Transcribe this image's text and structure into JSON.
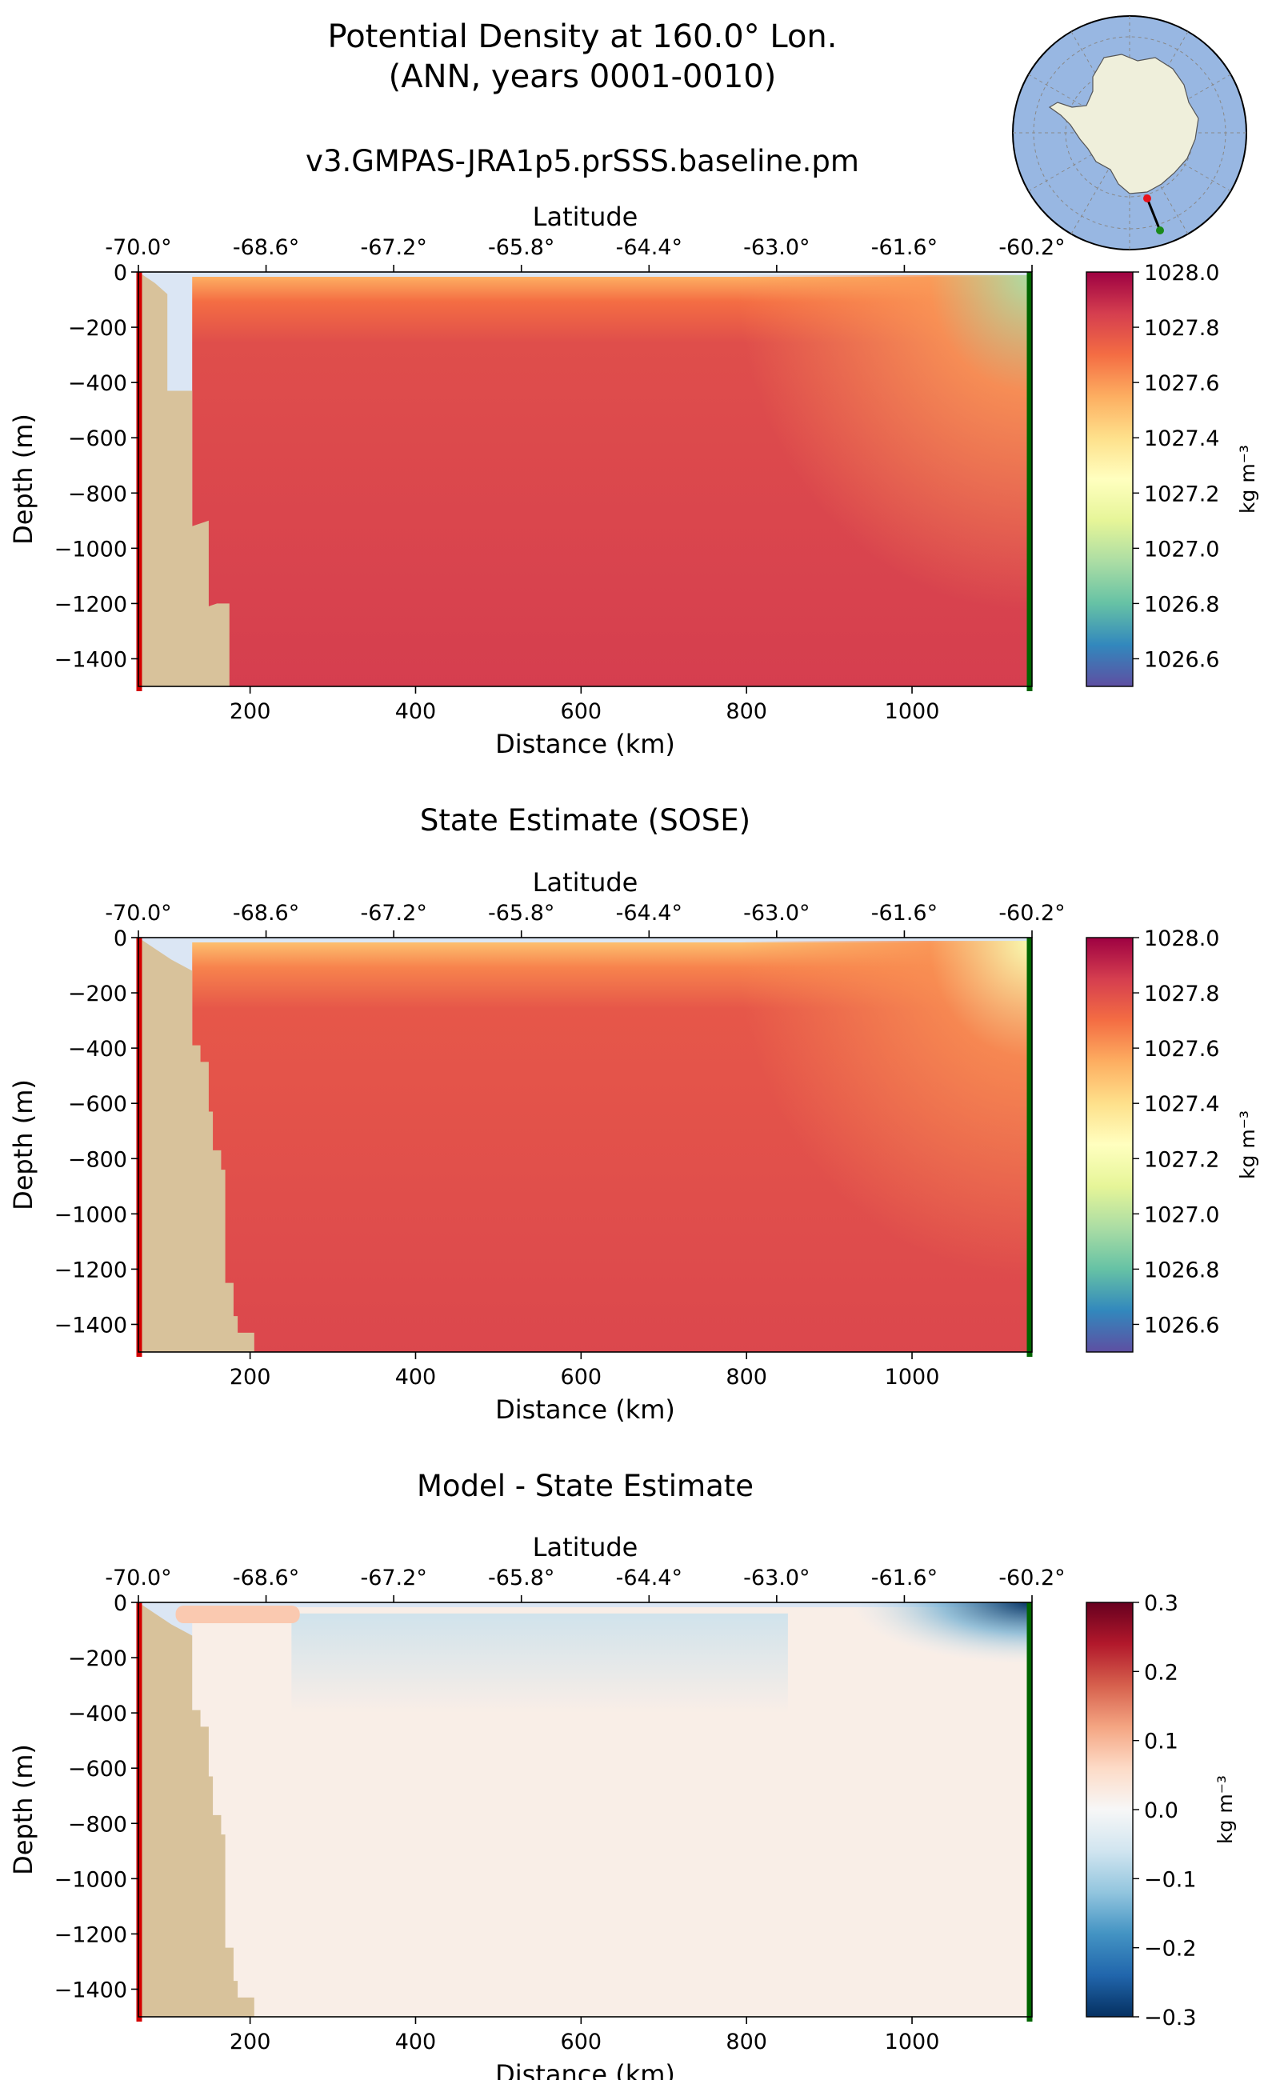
{
  "figure": {
    "title_line1": "Potential Density at 160.0° Lon.",
    "title_line2": "(ANN, years 0001-0010)",
    "run_name": "v3.GMPAS-JRA1p5.prSSS.baseline.pm"
  },
  "inset_map": {
    "description_icon": "antarctica-map-icon",
    "ocean_color": "#98b7e2",
    "land_color": "#efefdb",
    "transect_start_marker_color": "#e8141c",
    "transect_end_marker_color": "#1a8a1a"
  },
  "colors": {
    "bathymetry": "#d8c29b",
    "start_line": "#d40000",
    "end_line": "#006400"
  },
  "chart_data": [
    {
      "type": "heatmap",
      "title": "",
      "xlabel": "Distance (km)",
      "ylabel": "Depth (m)",
      "top_axis_label": "Latitude",
      "top_ticks": [
        "-70.0°",
        "-68.6°",
        "-67.2°",
        "-65.8°",
        "-64.4°",
        "-63.0°",
        "-61.6°",
        "-60.2°"
      ],
      "x_ticks": [
        200,
        400,
        600,
        800,
        1000
      ],
      "y_ticks": [
        0,
        -200,
        -400,
        -600,
        -800,
        -1000,
        -1200,
        -1400
      ],
      "y_tick_labels": [
        "0",
        "−200",
        "−400",
        "−600",
        "−800",
        "−1000",
        "−1200",
        "−1400"
      ],
      "xlim": [
        65,
        1145
      ],
      "ylim": [
        -1500,
        0
      ],
      "colorbar_label": "kg m⁻³",
      "colorbar_ticks": [
        1028.0,
        1027.8,
        1027.6,
        1027.4,
        1027.2,
        1027.0,
        1026.8,
        1026.6
      ],
      "colorbar_tick_labels": [
        "1028.0",
        "1027.8",
        "1027.6",
        "1027.4",
        "1027.2",
        "1027.0",
        "1026.8",
        "1026.6"
      ],
      "clim": [
        1026.5,
        1028.0
      ],
      "colormap": "Spectral_r",
      "field": {
        "interior_value": 1027.85,
        "surface_value": 1027.55,
        "east_surface_value": 1026.95,
        "east_upper_value": 1027.6
      },
      "bathymetry_profile": [
        {
          "distance_km": 65,
          "depth_m": 0
        },
        {
          "distance_km": 85,
          "depth_m": -40
        },
        {
          "distance_km": 100,
          "depth_m": -80
        },
        {
          "distance_km": 100,
          "depth_m": -430
        },
        {
          "distance_km": 130,
          "depth_m": -430
        },
        {
          "distance_km": 130,
          "depth_m": -920
        },
        {
          "distance_km": 150,
          "depth_m": -900
        },
        {
          "distance_km": 150,
          "depth_m": -1210
        },
        {
          "distance_km": 160,
          "depth_m": -1200
        },
        {
          "distance_km": 175,
          "depth_m": -1200
        },
        {
          "distance_km": 175,
          "depth_m": -1500
        }
      ]
    },
    {
      "type": "heatmap",
      "title": "State Estimate (SOSE)",
      "xlabel": "Distance (km)",
      "ylabel": "Depth (m)",
      "top_axis_label": "Latitude",
      "top_ticks": [
        "-70.0°",
        "-68.6°",
        "-67.2°",
        "-65.8°",
        "-64.4°",
        "-63.0°",
        "-61.6°",
        "-60.2°"
      ],
      "x_ticks": [
        200,
        400,
        600,
        800,
        1000
      ],
      "y_ticks": [
        0,
        -200,
        -400,
        -600,
        -800,
        -1000,
        -1200,
        -1400
      ],
      "y_tick_labels": [
        "0",
        "−200",
        "−400",
        "−600",
        "−800",
        "−1000",
        "−1200",
        "−1400"
      ],
      "xlim": [
        65,
        1145
      ],
      "ylim": [
        -1500,
        0
      ],
      "colorbar_label": "kg m⁻³",
      "colorbar_ticks": [
        1028.0,
        1027.8,
        1027.6,
        1027.4,
        1027.2,
        1027.0,
        1026.8,
        1026.6
      ],
      "colorbar_tick_labels": [
        "1028.0",
        "1027.8",
        "1027.6",
        "1027.4",
        "1027.2",
        "1027.0",
        "1026.8",
        "1026.6"
      ],
      "clim": [
        1026.5,
        1028.0
      ],
      "colormap": "Spectral_r",
      "field": {
        "interior_value": 1027.82,
        "surface_value": 1027.5,
        "east_surface_value": 1027.2,
        "east_upper_value": 1027.62
      },
      "bathymetry_profile": [
        {
          "distance_km": 65,
          "depth_m": 0
        },
        {
          "distance_km": 85,
          "depth_m": -40
        },
        {
          "distance_km": 105,
          "depth_m": -80
        },
        {
          "distance_km": 130,
          "depth_m": -120
        },
        {
          "distance_km": 130,
          "depth_m": -390
        },
        {
          "distance_km": 140,
          "depth_m": -390
        },
        {
          "distance_km": 140,
          "depth_m": -450
        },
        {
          "distance_km": 150,
          "depth_m": -450
        },
        {
          "distance_km": 150,
          "depth_m": -630
        },
        {
          "distance_km": 155,
          "depth_m": -630
        },
        {
          "distance_km": 155,
          "depth_m": -770
        },
        {
          "distance_km": 165,
          "depth_m": -770
        },
        {
          "distance_km": 165,
          "depth_m": -840
        },
        {
          "distance_km": 170,
          "depth_m": -840
        },
        {
          "distance_km": 170,
          "depth_m": -1250
        },
        {
          "distance_km": 180,
          "depth_m": -1250
        },
        {
          "distance_km": 180,
          "depth_m": -1370
        },
        {
          "distance_km": 185,
          "depth_m": -1370
        },
        {
          "distance_km": 185,
          "depth_m": -1430
        },
        {
          "distance_km": 205,
          "depth_m": -1430
        },
        {
          "distance_km": 205,
          "depth_m": -1500
        }
      ]
    },
    {
      "type": "heatmap",
      "title": "Model - State Estimate",
      "xlabel": "Distance (km)",
      "ylabel": "Depth (m)",
      "top_axis_label": "Latitude",
      "top_ticks": [
        "-70.0°",
        "-68.6°",
        "-67.2°",
        "-65.8°",
        "-64.4°",
        "-63.0°",
        "-61.6°",
        "-60.2°"
      ],
      "x_ticks": [
        200,
        400,
        600,
        800,
        1000
      ],
      "y_ticks": [
        0,
        -200,
        -400,
        -600,
        -800,
        -1000,
        -1200,
        -1400
      ],
      "y_tick_labels": [
        "0",
        "−200",
        "−400",
        "−600",
        "−800",
        "−1000",
        "−1200",
        "−1400"
      ],
      "xlim": [
        65,
        1145
      ],
      "ylim": [
        -1500,
        0
      ],
      "colorbar_label": "kg m⁻³",
      "colorbar_ticks": [
        0.3,
        0.2,
        0.1,
        0.0,
        -0.1,
        -0.2,
        -0.3
      ],
      "colorbar_tick_labels": [
        "0.3",
        "0.2",
        "0.1",
        "0.0",
        "−0.1",
        "−0.2",
        "−0.3"
      ],
      "clim": [
        -0.3,
        0.3
      ],
      "colormap": "RdBu_r",
      "field": {
        "interior_value": 0.02,
        "upper_band_value": -0.07,
        "east_surface_value": -0.3,
        "near_coast_surface_value": 0.08
      },
      "bathymetry_profile": [
        {
          "distance_km": 65,
          "depth_m": 0
        },
        {
          "distance_km": 85,
          "depth_m": -40
        },
        {
          "distance_km": 105,
          "depth_m": -80
        },
        {
          "distance_km": 130,
          "depth_m": -120
        },
        {
          "distance_km": 130,
          "depth_m": -390
        },
        {
          "distance_km": 140,
          "depth_m": -390
        },
        {
          "distance_km": 140,
          "depth_m": -450
        },
        {
          "distance_km": 150,
          "depth_m": -450
        },
        {
          "distance_km": 150,
          "depth_m": -630
        },
        {
          "distance_km": 155,
          "depth_m": -630
        },
        {
          "distance_km": 155,
          "depth_m": -770
        },
        {
          "distance_km": 165,
          "depth_m": -770
        },
        {
          "distance_km": 165,
          "depth_m": -840
        },
        {
          "distance_km": 170,
          "depth_m": -840
        },
        {
          "distance_km": 170,
          "depth_m": -1250
        },
        {
          "distance_km": 180,
          "depth_m": -1250
        },
        {
          "distance_km": 180,
          "depth_m": -1370
        },
        {
          "distance_km": 185,
          "depth_m": -1370
        },
        {
          "distance_km": 185,
          "depth_m": -1430
        },
        {
          "distance_km": 205,
          "depth_m": -1430
        },
        {
          "distance_km": 205,
          "depth_m": -1500
        }
      ]
    }
  ]
}
